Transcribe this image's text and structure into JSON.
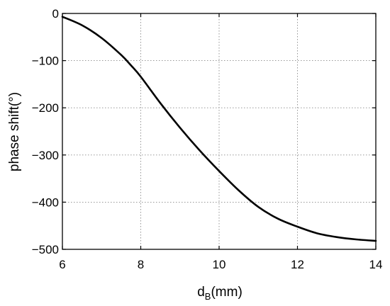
{
  "chart_data": {
    "type": "line",
    "title": "",
    "xlabel": "d",
    "xlabel_sub": "B",
    "xlabel_suffix": "(mm)",
    "ylabel": "phase shift(°)",
    "xlim": [
      6,
      14
    ],
    "ylim": [
      -500,
      0
    ],
    "xticks": [
      6,
      8,
      10,
      12,
      14
    ],
    "yticks": [
      0,
      -100,
      -200,
      -300,
      -400,
      -500
    ],
    "xtick_labels": [
      "6",
      "8",
      "10",
      "12",
      "14"
    ],
    "ytick_labels": [
      "0",
      "−100",
      "−200",
      "−300",
      "−400",
      "−500"
    ],
    "grid": true,
    "series": [
      {
        "x": [
          6.0,
          6.5,
          7.0,
          7.5,
          7.75,
          8.0,
          8.5,
          9.0,
          9.5,
          10.0,
          10.5,
          11.0,
          11.5,
          12.0,
          12.5,
          13.0,
          13.5,
          14.0
        ],
        "y": [
          -7,
          -25,
          -52,
          -88,
          -110,
          -134,
          -190,
          -242,
          -290,
          -334,
          -375,
          -410,
          -435,
          -452,
          -466,
          -474,
          -479,
          -482
        ],
        "color": "#000000"
      }
    ]
  }
}
